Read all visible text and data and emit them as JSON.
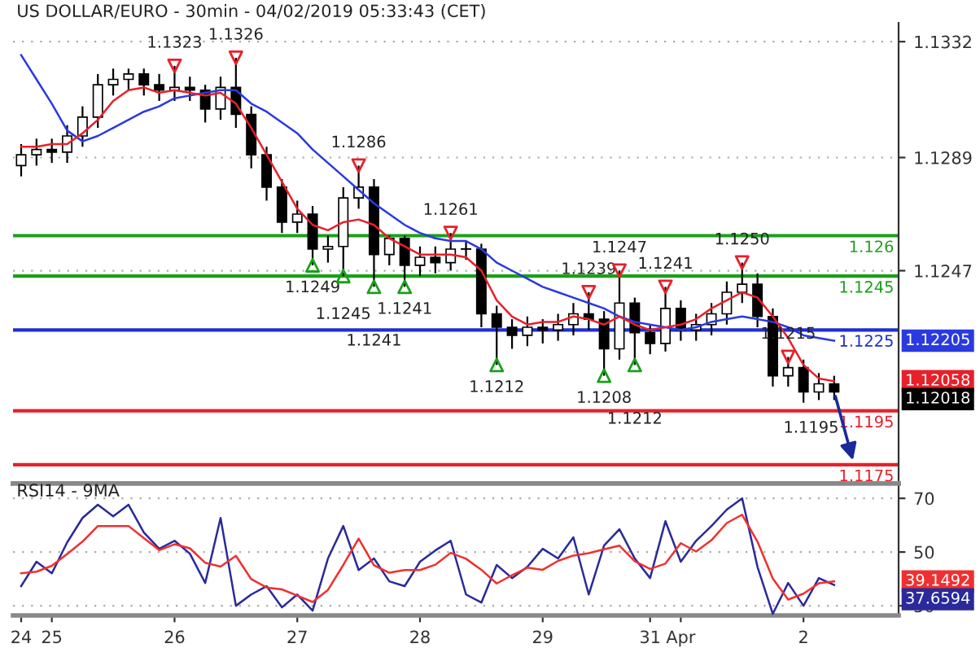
{
  "chart_data": [
    {
      "type": "candlestick",
      "title": "US DOLLAR/EURO - 30min - 04/02/2019 05:33:43 (CET)",
      "categories": [
        null,
        null,
        null,
        null,
        null,
        null,
        null,
        null,
        null,
        null,
        null,
        null,
        null,
        null,
        null,
        null,
        null,
        null,
        null,
        null,
        null,
        null,
        null,
        null,
        null,
        null,
        null,
        null,
        null,
        null,
        null,
        null,
        null,
        null,
        null,
        null,
        null,
        null,
        null,
        null,
        null,
        null,
        null,
        null,
        null,
        null,
        null,
        null,
        null,
        null,
        null,
        null,
        null,
        null
      ],
      "ohlc": [
        [
          1.1286,
          1.1294,
          1.1282,
          1.129
        ],
        [
          1.129,
          1.1296,
          1.1286,
          1.1292
        ],
        [
          1.1292,
          1.1296,
          1.1287,
          1.1291
        ],
        [
          1.1291,
          1.1301,
          1.1287,
          1.1297
        ],
        [
          1.1297,
          1.1308,
          1.1293,
          1.1304
        ],
        [
          1.1304,
          1.132,
          1.13,
          1.1316
        ],
        [
          1.1316,
          1.1322,
          1.1312,
          1.1318
        ],
        [
          1.1318,
          1.1322,
          1.1314,
          1.132
        ],
        [
          1.132,
          1.1322,
          1.1312,
          1.1316
        ],
        [
          1.1316,
          1.132,
          1.131,
          1.1314
        ],
        [
          1.1314,
          1.1323,
          1.131,
          1.1315
        ],
        [
          1.1315,
          1.1319,
          1.131,
          1.1314
        ],
        [
          1.1314,
          1.1316,
          1.1302,
          1.1307
        ],
        [
          1.1307,
          1.1319,
          1.1303,
          1.1315
        ],
        [
          1.1315,
          1.1326,
          1.13,
          1.1305
        ],
        [
          1.1305,
          1.1308,
          1.1285,
          1.129
        ],
        [
          1.129,
          1.1293,
          1.1273,
          1.1278
        ],
        [
          1.1278,
          1.1281,
          1.1261,
          1.1265
        ],
        [
          1.1265,
          1.1273,
          1.1261,
          1.1268
        ],
        [
          1.1268,
          1.1271,
          1.1249,
          1.1255
        ],
        [
          1.1255,
          1.126,
          1.125,
          1.1256
        ],
        [
          1.1256,
          1.1278,
          1.1245,
          1.1274
        ],
        [
          1.1274,
          1.1286,
          1.127,
          1.1278
        ],
        [
          1.1278,
          1.1281,
          1.1241,
          1.1253
        ],
        [
          1.1253,
          1.126,
          1.1249,
          1.1259
        ],
        [
          1.1259,
          1.126,
          1.1241,
          1.1249
        ],
        [
          1.1249,
          1.1256,
          1.1245,
          1.1252
        ],
        [
          1.1252,
          1.1256,
          1.1246,
          1.125
        ],
        [
          1.125,
          1.1261,
          1.1247,
          1.1255
        ],
        [
          1.1255,
          1.1258,
          1.1251,
          1.1255
        ],
        [
          1.1255,
          1.1257,
          1.1226,
          1.1231
        ],
        [
          1.1231,
          1.1234,
          1.1212,
          1.1226
        ],
        [
          1.1226,
          1.1229,
          1.1218,
          1.1223
        ],
        [
          1.1223,
          1.123,
          1.1219,
          1.1226
        ],
        [
          1.1226,
          1.1229,
          1.122,
          1.1225
        ],
        [
          1.1225,
          1.1231,
          1.1221,
          1.1227
        ],
        [
          1.1227,
          1.1235,
          1.1223,
          1.1231
        ],
        [
          1.1231,
          1.1239,
          1.1225,
          1.1229
        ],
        [
          1.1229,
          1.1232,
          1.1208,
          1.1218
        ],
        [
          1.1218,
          1.1247,
          1.1214,
          1.1235
        ],
        [
          1.1235,
          1.1237,
          1.1212,
          1.1224
        ],
        [
          1.1224,
          1.1227,
          1.1216,
          1.122
        ],
        [
          1.122,
          1.1241,
          1.1217,
          1.1233
        ],
        [
          1.1233,
          1.1236,
          1.1221,
          1.1225
        ],
        [
          1.1225,
          1.1231,
          1.1221,
          1.1227
        ],
        [
          1.1227,
          1.1235,
          1.1223,
          1.1231
        ],
        [
          1.1231,
          1.1243,
          1.1227,
          1.1239
        ],
        [
          1.1239,
          1.125,
          1.1235,
          1.1242
        ],
        [
          1.1242,
          1.1246,
          1.1226,
          1.123
        ],
        [
          1.123,
          1.1233,
          1.1204,
          1.1208
        ],
        [
          1.1208,
          1.1215,
          1.1204,
          1.1211
        ],
        [
          1.1211,
          1.1214,
          1.1198,
          1.1202
        ],
        [
          1.1202,
          1.1209,
          1.1199,
          1.1205
        ],
        [
          1.1205,
          1.1208,
          1.1199,
          1.1202
        ]
      ],
      "series": [
        {
          "type": "line",
          "color": "#2a3ae0",
          "values": [
            1.1327,
            1.1318,
            1.1309,
            1.1299,
            1.1295,
            1.1297,
            1.13,
            1.1303,
            1.1306,
            1.1308,
            1.1311,
            1.1312,
            1.1313,
            1.1314,
            1.1314,
            1.1309,
            1.1306,
            1.1302,
            1.1298,
            1.1292,
            1.1287,
            1.1282,
            1.1277,
            1.1272,
            1.1268,
            1.1264,
            1.1261,
            1.1259,
            1.1258,
            1.1258,
            1.1255,
            1.125,
            1.1247,
            1.1244,
            1.1241,
            1.1239,
            1.1237,
            1.1235,
            1.1233,
            1.123,
            1.1228,
            1.1227,
            1.1226,
            1.1225,
            1.1226,
            1.1228,
            1.1229,
            1.123,
            1.1229,
            1.1228,
            1.1226,
            1.1223,
            1.1222,
            1.1221
          ]
        },
        {
          "type": "line",
          "color": "#e8202a",
          "values": [
            1.1293,
            1.1293,
            1.1294,
            1.1294,
            1.1298,
            1.1303,
            1.131,
            1.1314,
            1.1315,
            1.1313,
            1.1314,
            1.1313,
            1.1312,
            1.1313,
            1.1309,
            1.13,
            1.129,
            1.128,
            1.127,
            1.1264,
            1.1262,
            1.1265,
            1.1266,
            1.1264,
            1.1259,
            1.1256,
            1.1253,
            1.1253,
            1.1253,
            1.1252,
            1.1247,
            1.1236,
            1.123,
            1.1227,
            1.1228,
            1.1228,
            1.123,
            1.1229,
            1.1227,
            1.123,
            1.1227,
            1.1225,
            1.1226,
            1.1227,
            1.1229,
            1.1233,
            1.1236,
            1.1239,
            1.1237,
            1.123,
            1.1222,
            1.1212,
            1.1207,
            1.1206
          ]
        },
        {
          "type": "scatter",
          "marker": "triangle",
          "color": "#e8202a",
          "values": [
            null,
            null,
            null,
            null,
            null,
            null,
            null,
            null,
            null,
            null,
            1.1323,
            null,
            null,
            null,
            1.1326,
            null,
            null,
            null,
            null,
            null,
            null,
            null,
            1.1286,
            null,
            null,
            null,
            null,
            null,
            1.1261,
            null,
            null,
            null,
            null,
            null,
            null,
            null,
            null,
            1.1239,
            null,
            1.1247,
            null,
            null,
            1.1241,
            null,
            null,
            null,
            null,
            1.125,
            null,
            null,
            1.1215,
            null,
            null,
            null
          ],
          "value_labels": [
            null,
            null,
            null,
            null,
            null,
            null,
            null,
            null,
            null,
            null,
            "1.1323",
            null,
            null,
            null,
            "1.1326",
            null,
            null,
            null,
            null,
            null,
            null,
            null,
            "1.1286",
            null,
            null,
            null,
            null,
            null,
            "1.1261",
            null,
            null,
            null,
            null,
            null,
            null,
            null,
            null,
            "1.1239",
            null,
            "1.1247",
            null,
            null,
            "1.1241",
            null,
            null,
            null,
            null,
            "1.1250",
            null,
            null,
            "1.1215",
            null,
            null,
            null
          ]
        },
        {
          "type": "scatter",
          "marker": "triangle",
          "color": "#1aa01a",
          "values": [
            null,
            null,
            null,
            null,
            null,
            null,
            null,
            null,
            null,
            null,
            null,
            null,
            null,
            null,
            null,
            null,
            null,
            null,
            null,
            1.1249,
            null,
            1.1245,
            null,
            1.1241,
            null,
            1.1241,
            null,
            null,
            null,
            null,
            null,
            1.1212,
            null,
            null,
            null,
            null,
            null,
            null,
            1.1208,
            null,
            1.1212,
            null,
            null,
            null,
            null,
            null,
            null,
            null,
            null,
            null,
            null,
            null,
            null,
            null
          ],
          "value_labels": [
            null,
            null,
            null,
            null,
            null,
            null,
            null,
            null,
            null,
            null,
            null,
            null,
            null,
            null,
            null,
            null,
            null,
            null,
            null,
            "1.1249",
            null,
            "1.1245",
            null,
            "1.1241",
            null,
            "1.1241",
            null,
            null,
            null,
            null,
            null,
            "1.1212",
            null,
            null,
            null,
            null,
            null,
            null,
            "1.1208",
            null,
            "1.1212",
            null,
            null,
            null,
            null,
            null,
            null,
            null,
            null,
            null,
            null,
            null,
            null,
            null
          ]
        }
      ],
      "ref_lines": [
        {
          "axis": "y",
          "value": 1.126,
          "label": "1.126",
          "color": "#1aa01a"
        },
        {
          "axis": "y",
          "value": 1.1245,
          "label": "1.1245",
          "color": "#1aa01a"
        },
        {
          "axis": "y",
          "value": 1.1225,
          "label": "1.1225",
          "color": "#1f2fd0"
        },
        {
          "axis": "y",
          "value": 1.1195,
          "label": "1.1195",
          "color": "#e8202a"
        },
        {
          "axis": "y",
          "value": 1.1175,
          "label": "1.1175",
          "color": "#e8202a"
        }
      ],
      "annotations": [
        "1.12018",
        "1.12205",
        "1.12058",
        "1.1195"
      ],
      "ylim": [
        1.1168,
        1.1339
      ],
      "yticks": [
        1.1332,
        1.1289,
        1.1247
      ],
      "grid": "y",
      "tick_labels": "y"
    },
    {
      "type": "line",
      "title": "RSI14 - 9MA",
      "categories": [
        "24",
        null,
        "25",
        null,
        null,
        null,
        null,
        null,
        null,
        null,
        "26",
        null,
        null,
        null,
        null,
        null,
        null,
        null,
        "27",
        null,
        null,
        null,
        null,
        null,
        null,
        null,
        "28",
        null,
        null,
        null,
        null,
        null,
        null,
        null,
        "29",
        null,
        null,
        null,
        null,
        null,
        null,
        "31",
        null,
        "Apr",
        null,
        null,
        null,
        null,
        null,
        null,
        null,
        "2",
        null,
        null
      ],
      "series": [
        {
          "type": "line",
          "color": "#2a2a9a",
          "values": [
            37.3,
            46.4,
            42.1,
            53.6,
            62.7,
            67.6,
            63.3,
            67.6,
            57.3,
            51.2,
            54.2,
            49.4,
            38.5,
            62.7,
            30.0,
            34.2,
            37.3,
            29.4,
            34.2,
            28.2,
            47.6,
            59.7,
            43.3,
            47.6,
            39.1,
            37.3,
            46.4,
            50.6,
            54.2,
            34.2,
            31.2,
            45.2,
            40.3,
            44.5,
            51.2,
            47.6,
            55.5,
            34.2,
            52.4,
            58.5,
            47.6,
            40.3,
            61.5,
            46.4,
            54.2,
            59.7,
            65.8,
            70.0,
            44.5,
            27.0,
            38.5,
            30.0,
            40.3,
            37.7
          ]
        },
        {
          "type": "line",
          "color": "#f03030",
          "values": [
            42.1,
            42.7,
            44.9,
            49.3,
            53.9,
            59.7,
            59.7,
            59.7,
            55.2,
            50.7,
            52.9,
            51.4,
            46.0,
            44.6,
            48.6,
            39.9,
            36.8,
            36.1,
            33.8,
            31.4,
            35.9,
            45.2,
            55.0,
            45.1,
            42.3,
            43.3,
            43.3,
            45.3,
            49.7,
            47.5,
            43.4,
            38.3,
            41.4,
            44.2,
            43.4,
            46.7,
            48.7,
            49.6,
            51.0,
            52.4,
            46.6,
            43.7,
            45.7,
            53.3,
            50.2,
            54.4,
            60.8,
            63.9,
            53.9,
            40.1,
            32.3,
            34.5,
            38.4,
            39.1
          ]
        }
      ],
      "annotations": [
        "37.6594",
        "39.1492"
      ],
      "ylim": [
        26.4,
        75.5
      ],
      "yticks": [
        30,
        50,
        70
      ],
      "grid": "y"
    }
  ]
}
